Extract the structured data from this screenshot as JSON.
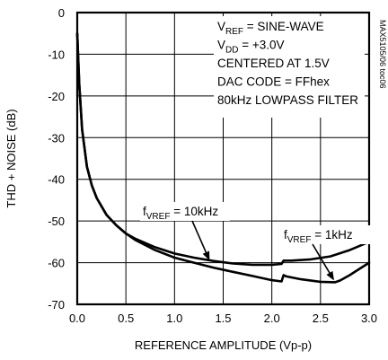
{
  "chart_data": {
    "type": "line",
    "xlabel": "REFERENCE AMPLITUDE (Vp-p)",
    "ylabel": "THD + NOISE (dB)",
    "xlim": [
      0,
      3.0
    ],
    "ylim": [
      -70,
      0
    ],
    "x_ticks": [
      0,
      0.5,
      1.0,
      1.5,
      2.0,
      2.5,
      3.0
    ],
    "x_tick_labels": [
      "0.0",
      "0.5",
      "1.0",
      "1.5",
      "2.0",
      "2.5",
      "3.0"
    ],
    "y_ticks": [
      0,
      -10,
      -20,
      -30,
      -40,
      -50,
      -60,
      -70
    ],
    "y_tick_labels": [
      "0",
      "-10",
      "-20",
      "-30",
      "-40",
      "-50",
      "-60",
      "-70"
    ],
    "grid": true,
    "conditions": [
      {
        "main": "V",
        "sub": "REF",
        "rest": " = SINE-WAVE"
      },
      {
        "main": "V",
        "sub": "DD",
        "rest": " = +3.0V"
      },
      {
        "main": "CENTERED AT 1.5V",
        "sub": "",
        "rest": ""
      },
      {
        "main": "DAC CODE = FFhex",
        "sub": "",
        "rest": ""
      },
      {
        "main": "80kHz LOWPASS FILTER",
        "sub": "",
        "rest": ""
      }
    ],
    "figure_id": "MAX5105/06 toc06",
    "series": [
      {
        "label": {
          "main": "f",
          "sub": "VREF",
          "rest": " = 10kHz"
        },
        "x": [
          0.0,
          0.02,
          0.05,
          0.1,
          0.15,
          0.2,
          0.3,
          0.4,
          0.5,
          0.6,
          0.8,
          1.0,
          1.2,
          1.4,
          1.6,
          1.8,
          2.0,
          2.1,
          2.12,
          2.2,
          2.4,
          2.6,
          2.8,
          3.0
        ],
        "y": [
          -5,
          -17,
          -28,
          -37,
          -41.5,
          -44.5,
          -48.5,
          -51,
          -53,
          -54.3,
          -56.3,
          -57.8,
          -58.8,
          -59.6,
          -60.2,
          -60.5,
          -60.5,
          -60.3,
          -59.5,
          -59.5,
          -59.2,
          -58.5,
          -57,
          -55
        ]
      },
      {
        "label": {
          "main": "f",
          "sub": "VREF",
          "rest": " = 1kHz"
        },
        "x": [
          0.0,
          0.02,
          0.05,
          0.1,
          0.15,
          0.2,
          0.3,
          0.4,
          0.5,
          0.6,
          0.8,
          1.0,
          1.2,
          1.4,
          1.6,
          1.8,
          2.0,
          2.1,
          2.12,
          2.15,
          2.3,
          2.5,
          2.65,
          2.7,
          2.8,
          2.9,
          3.0
        ],
        "y": [
          -5,
          -17,
          -28,
          -37,
          -41.5,
          -44.5,
          -48.5,
          -51,
          -53,
          -54.6,
          -57,
          -58.8,
          -60,
          -61.2,
          -62.2,
          -63.2,
          -64.2,
          -64.5,
          -63,
          -63.3,
          -64,
          -64.6,
          -64.7,
          -64.3,
          -63,
          -61.5,
          -60
        ]
      }
    ]
  }
}
